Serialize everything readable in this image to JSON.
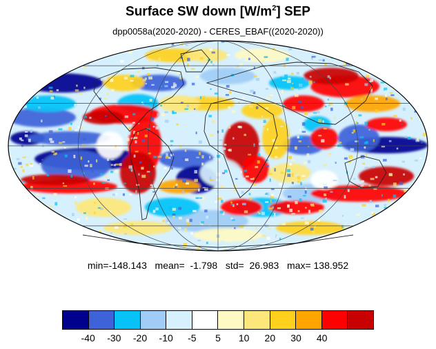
{
  "title": {
    "main": "Surface SW down [W/m",
    "sup": "2",
    "tail": "]  SEP"
  },
  "subtitle": "dpp0058a(2020-2020) - CERES_EBAF((2020-2020))",
  "stats": "min=-148.143   mean=  -1.798   std=  26.983   max= 138.952",
  "colorbar": {
    "colors": [
      "#00008f",
      "#3e63d9",
      "#06c2f7",
      "#9fcdf7",
      "#d7f0fd",
      "#ffffff",
      "#fffac3",
      "#fde77a",
      "#ffd11c",
      "#ffa500",
      "#ff0000",
      "#c90000"
    ],
    "labels": [
      "-40",
      "-30",
      "-20",
      "-10",
      "-5",
      "5",
      "10",
      "20",
      "30",
      "40"
    ]
  },
  "map": {
    "projection": "Mollweide",
    "grid": true,
    "coastlines": true
  }
}
